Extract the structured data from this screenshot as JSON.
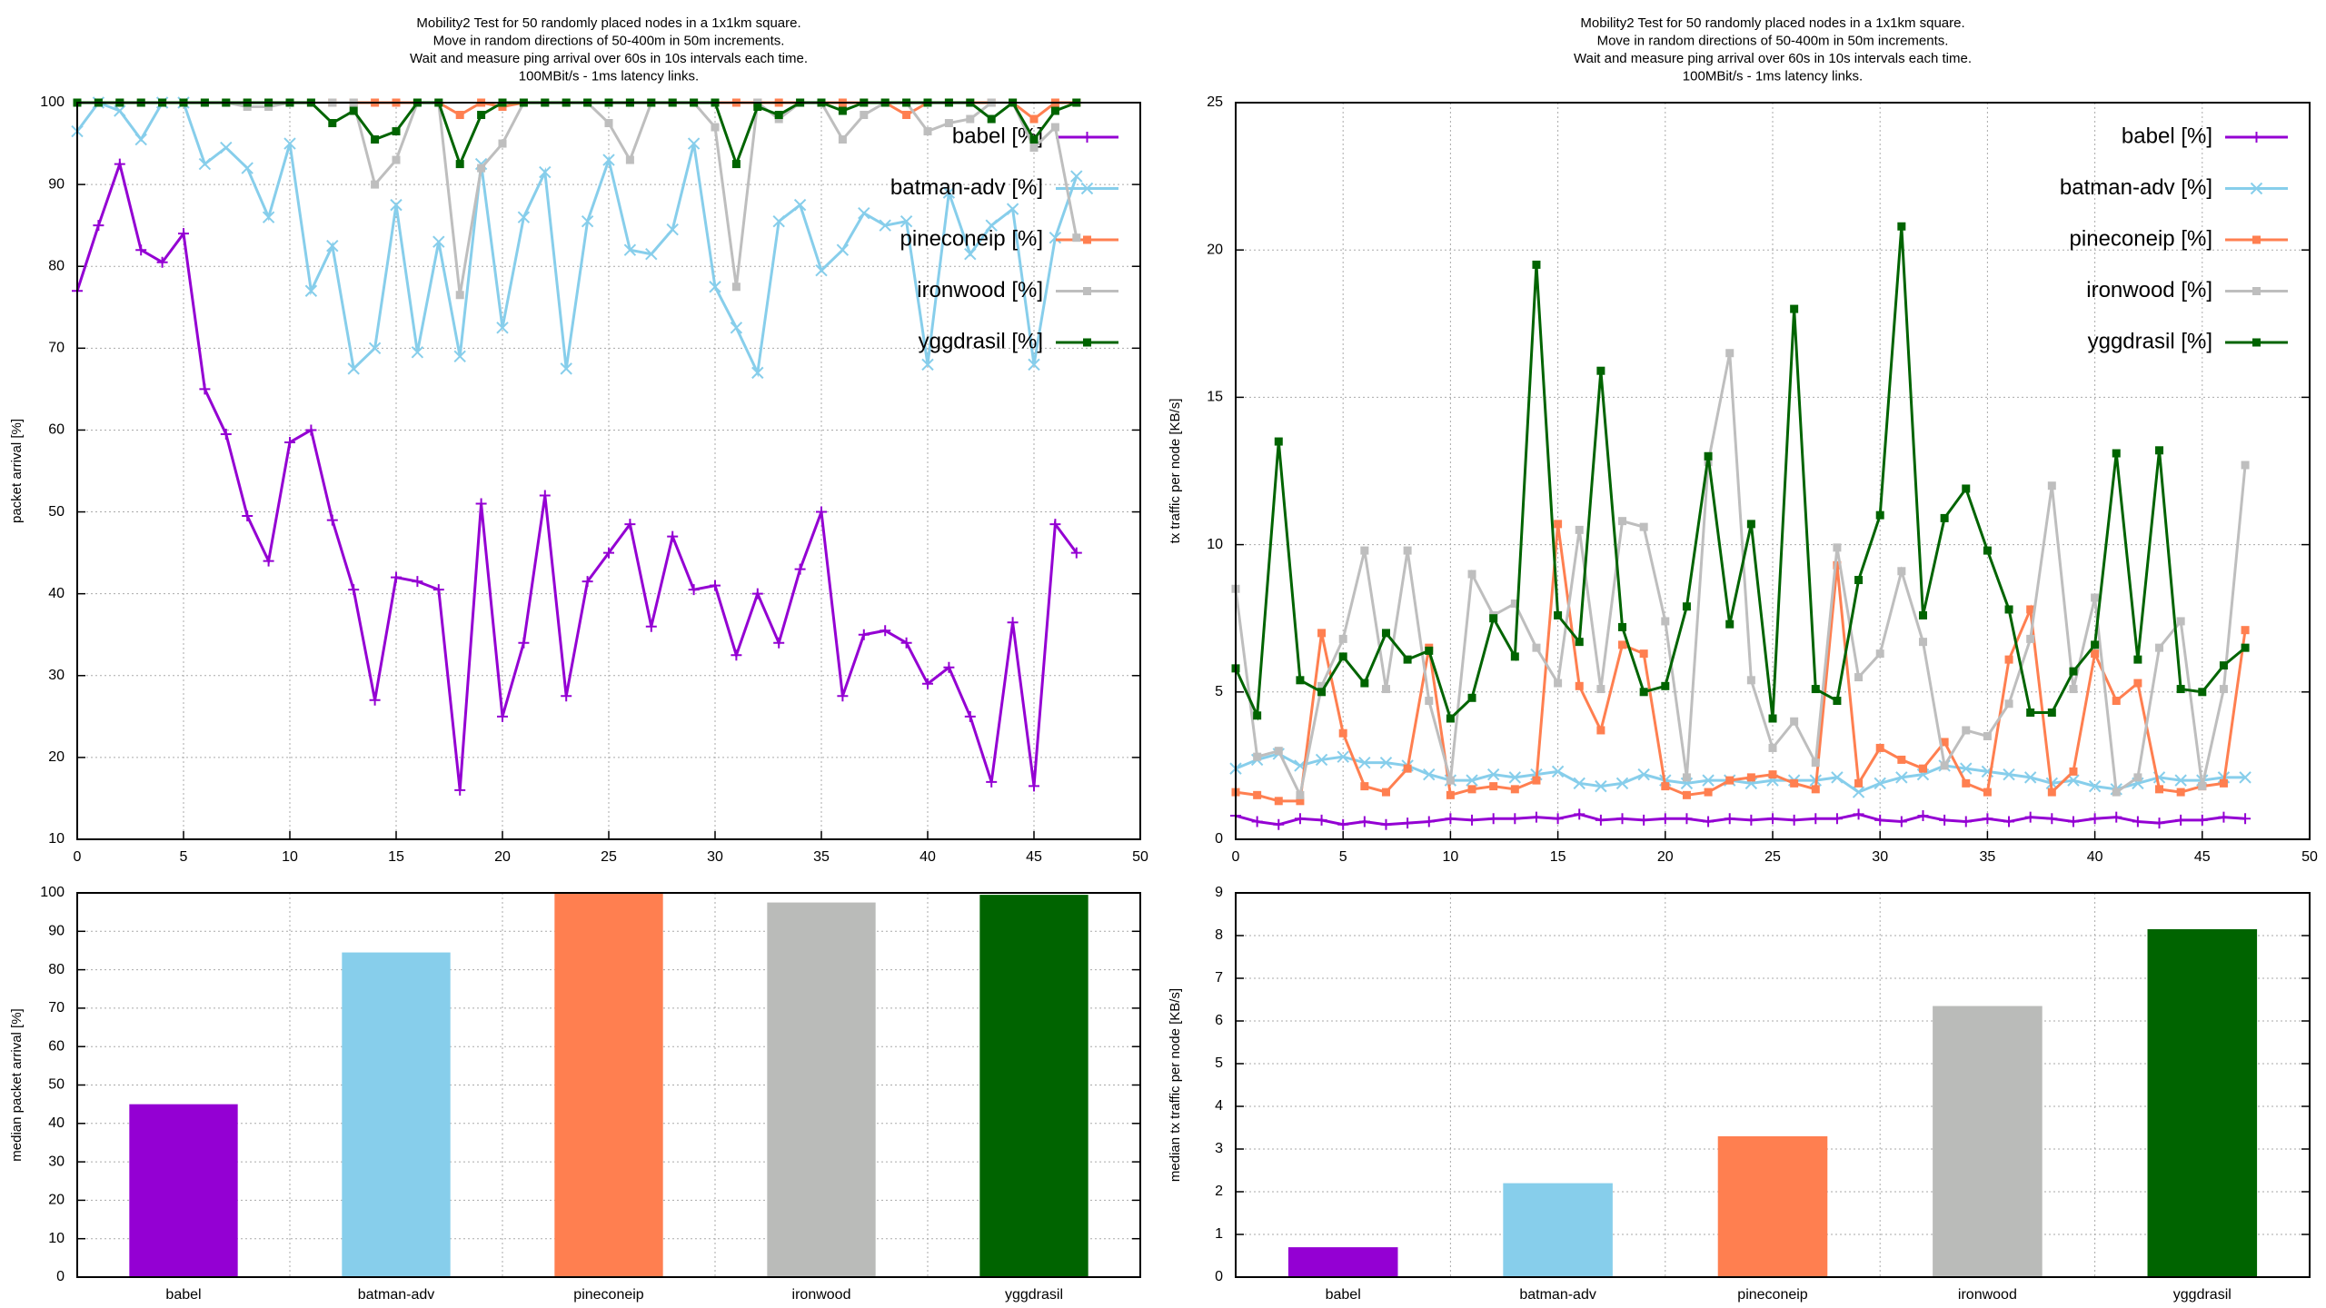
{
  "chart_data": [
    {
      "type": "line",
      "title": [
        "Mobility2 Test for 50 randomly placed nodes in a 1x1km square.",
        "Move in random directions of 50-400m in 50m increments.",
        "Wait and measure ping arrival over 60s in 10s intervals each time.",
        "100MBit/s - 1ms latency links."
      ],
      "ylabel": "packet arrival [%]",
      "xlim": [
        0,
        50
      ],
      "xticks": [
        0,
        5,
        10,
        15,
        20,
        25,
        30,
        35,
        40,
        45,
        50
      ],
      "ylim": [
        10,
        100
      ],
      "yticks": [
        10,
        20,
        30,
        40,
        50,
        60,
        70,
        80,
        90,
        100
      ],
      "grid": true,
      "legend": "top right",
      "x": [
        0,
        1,
        2,
        3,
        4,
        5,
        6,
        7,
        8,
        9,
        10,
        11,
        12,
        13,
        14,
        15,
        16,
        17,
        18,
        19,
        20,
        21,
        22,
        23,
        24,
        25,
        26,
        27,
        28,
        29,
        30,
        31,
        32,
        33,
        34,
        35,
        36,
        37,
        38,
        39,
        40,
        41,
        42,
        43,
        44,
        45,
        46,
        47
      ],
      "series": [
        {
          "name": "babel [%]",
          "color": "#9400d3",
          "marker": "plus",
          "values": [
            77,
            85,
            92.5,
            82,
            80.5,
            84,
            65,
            59.5,
            49.5,
            44,
            58.5,
            60,
            49,
            40.5,
            27,
            42,
            41.5,
            40.5,
            16,
            51,
            25,
            34,
            52,
            27.5,
            41.5,
            45,
            48.5,
            36,
            47,
            40.5,
            41,
            32.5,
            40,
            34,
            43,
            50,
            27.5,
            35,
            35.5,
            34,
            29,
            31,
            25,
            17,
            36.5,
            16.5,
            48.5,
            45
          ]
        },
        {
          "name": "batman-adv [%]",
          "color": "#87ceeb",
          "marker": "cross",
          "values": [
            96.5,
            100,
            99,
            95.5,
            100,
            100,
            92.5,
            94.5,
            92,
            86,
            95,
            77,
            82.5,
            67.5,
            70,
            87.5,
            69.5,
            83,
            69,
            92.5,
            72.5,
            86,
            91.5,
            67.5,
            85.5,
            93,
            82,
            81.5,
            84.5,
            95,
            77.5,
            72.5,
            67,
            85.5,
            87.5,
            79.5,
            82,
            86.5,
            85,
            85.5,
            68,
            89,
            81.5,
            85,
            87,
            68,
            83.5,
            91
          ]
        },
        {
          "name": "pineconeip [%]",
          "color": "#ff7f50",
          "marker": "square",
          "values": [
            100,
            100,
            100,
            100,
            100,
            100,
            100,
            100,
            100,
            100,
            100,
            100,
            100,
            100,
            100,
            100,
            100,
            100,
            98.5,
            100,
            99.5,
            100,
            100,
            100,
            100,
            100,
            100,
            100,
            100,
            100,
            100,
            100,
            100,
            100,
            100,
            100,
            100,
            100,
            100,
            98.5,
            100,
            100,
            100,
            100,
            100,
            98,
            100,
            100
          ]
        },
        {
          "name": "ironwood [%]",
          "color": "#bebebe",
          "marker": "square",
          "values": [
            100,
            100,
            100,
            100,
            100,
            100,
            100,
            100,
            99.5,
            99.5,
            100,
            100,
            100,
            100,
            90,
            93,
            100,
            100,
            76.5,
            92,
            95,
            100,
            100,
            100,
            100,
            97.5,
            93,
            100,
            100,
            100,
            97,
            77.5,
            100,
            98,
            100,
            100,
            95.5,
            98.5,
            100,
            100,
            96.5,
            97.5,
            98,
            100,
            100,
            94.5,
            97,
            83.5
          ]
        },
        {
          "name": "yggdrasil [%]",
          "color": "#006400",
          "marker": "square",
          "values": [
            100,
            100,
            100,
            100,
            100,
            100,
            100,
            100,
            100,
            100,
            100,
            100,
            97.5,
            99,
            95.5,
            96.5,
            100,
            100,
            92.5,
            98.5,
            100,
            100,
            100,
            100,
            100,
            100,
            100,
            100,
            100,
            100,
            100,
            92.5,
            99.5,
            98.5,
            100,
            100,
            99,
            100,
            100,
            100,
            100,
            100,
            100,
            98,
            100,
            95.5,
            99,
            100
          ]
        }
      ]
    },
    {
      "type": "line",
      "title": [
        "Mobility2 Test for 50 randomly placed nodes in a 1x1km square.",
        "Move in random directions of 50-400m in 50m increments.",
        "Wait and measure ping arrival over 60s in 10s intervals each time.",
        "100MBit/s - 1ms latency links."
      ],
      "ylabel": "tx traffic per node [KB/s]",
      "xlim": [
        0,
        50
      ],
      "xticks": [
        0,
        5,
        10,
        15,
        20,
        25,
        30,
        35,
        40,
        45,
        50
      ],
      "ylim": [
        0,
        25
      ],
      "yticks": [
        0,
        5,
        10,
        15,
        20,
        25
      ],
      "grid": true,
      "legend": "top right",
      "x": [
        0,
        1,
        2,
        3,
        4,
        5,
        6,
        7,
        8,
        9,
        10,
        11,
        12,
        13,
        14,
        15,
        16,
        17,
        18,
        19,
        20,
        21,
        22,
        23,
        24,
        25,
        26,
        27,
        28,
        29,
        30,
        31,
        32,
        33,
        34,
        35,
        36,
        37,
        38,
        39,
        40,
        41,
        42,
        43,
        44,
        45,
        46,
        47
      ],
      "series": [
        {
          "name": "babel [%]",
          "color": "#9400d3",
          "marker": "plus",
          "values": [
            0.8,
            0.6,
            0.5,
            0.7,
            0.65,
            0.5,
            0.6,
            0.5,
            0.55,
            0.6,
            0.7,
            0.65,
            0.7,
            0.7,
            0.75,
            0.7,
            0.85,
            0.65,
            0.7,
            0.65,
            0.7,
            0.7,
            0.6,
            0.7,
            0.65,
            0.7,
            0.65,
            0.7,
            0.7,
            0.85,
            0.65,
            0.6,
            0.8,
            0.65,
            0.6,
            0.7,
            0.6,
            0.75,
            0.7,
            0.6,
            0.7,
            0.75,
            0.6,
            0.55,
            0.65,
            0.65,
            0.75,
            0.7
          ]
        },
        {
          "name": "batman-adv [%]",
          "color": "#87ceeb",
          "marker": "cross",
          "values": [
            2.4,
            2.7,
            2.9,
            2.5,
            2.7,
            2.8,
            2.6,
            2.6,
            2.5,
            2.2,
            2,
            2,
            2.2,
            2.1,
            2.2,
            2.3,
            1.9,
            1.8,
            1.9,
            2.2,
            2,
            1.9,
            2,
            2,
            1.9,
            2,
            2,
            2,
            2.1,
            1.6,
            1.9,
            2.1,
            2.2,
            2.5,
            2.4,
            2.3,
            2.2,
            2.1,
            1.9,
            2,
            1.8,
            1.7,
            1.9,
            2.1,
            2,
            2,
            2.1,
            2.1
          ]
        },
        {
          "name": "pineconeip [%]",
          "color": "#ff7f50",
          "marker": "square",
          "values": [
            1.6,
            1.5,
            1.3,
            1.3,
            7,
            3.6,
            1.8,
            1.6,
            2.4,
            6.5,
            1.5,
            1.7,
            1.8,
            1.7,
            2,
            10.7,
            5.2,
            3.7,
            6.6,
            6.3,
            1.8,
            1.5,
            1.6,
            2,
            2.1,
            2.2,
            1.9,
            1.7,
            9.3,
            1.9,
            3.1,
            2.7,
            2.4,
            3.3,
            1.9,
            1.6,
            6.1,
            7.8,
            1.6,
            2.3,
            6.3,
            4.7,
            5.3,
            1.7,
            1.6,
            1.8,
            1.9,
            7.1
          ]
        },
        {
          "name": "ironwood [%]",
          "color": "#bebebe",
          "marker": "square",
          "values": [
            8.5,
            2.8,
            3,
            1.5,
            5.2,
            6.8,
            9.8,
            5.1,
            9.8,
            4.7,
            2,
            9,
            7.6,
            8,
            6.5,
            5.3,
            10.5,
            5.1,
            10.8,
            10.6,
            7.4,
            2.1,
            12.8,
            16.5,
            5.4,
            3.1,
            4,
            2.6,
            9.9,
            5.5,
            6.3,
            9.1,
            6.7,
            2.5,
            3.7,
            3.5,
            4.6,
            6.8,
            12,
            5.1,
            8.2,
            1.6,
            2.1,
            6.5,
            7.4,
            1.8,
            5.1,
            12.7
          ]
        },
        {
          "name": "yggdrasil [%]",
          "color": "#006400",
          "marker": "square",
          "values": [
            5.8,
            4.2,
            13.5,
            5.4,
            5,
            6.2,
            5.3,
            7,
            6.1,
            6.4,
            4.1,
            4.8,
            7.5,
            6.2,
            19.5,
            7.6,
            6.7,
            15.9,
            7.2,
            5,
            5.2,
            7.9,
            13,
            7.3,
            10.7,
            4.1,
            18,
            5.1,
            4.7,
            8.8,
            11,
            20.8,
            7.6,
            10.9,
            11.9,
            9.8,
            7.8,
            4.3,
            4.3,
            5.7,
            6.6,
            13.1,
            6.1,
            13.2,
            5.1,
            5,
            5.9,
            6.5
          ]
        }
      ]
    },
    {
      "type": "bar",
      "ylabel": "median packet arrival [%]",
      "categories": [
        "babel",
        "batman-adv",
        "pineconeip",
        "ironwood",
        "yggdrasil"
      ],
      "values": [
        45,
        84.5,
        100,
        97.5,
        99.5
      ],
      "colors": [
        "#9400d3",
        "#87ceeb",
        "#ff7f50",
        "#babbb9",
        "#006400"
      ],
      "ylim": [
        0,
        100
      ],
      "yticks": [
        0,
        10,
        20,
        30,
        40,
        50,
        60,
        70,
        80,
        90,
        100
      ],
      "grid": true
    },
    {
      "type": "bar",
      "ylabel": "median tx traffic per node [KB/s]",
      "categories": [
        "babel",
        "batman-adv",
        "pineconeip",
        "ironwood",
        "yggdrasil"
      ],
      "values": [
        0.7,
        2.2,
        3.3,
        6.35,
        8.15
      ],
      "colors": [
        "#9400d3",
        "#87ceeb",
        "#ff7f50",
        "#babbb9",
        "#006400"
      ],
      "ylim": [
        0,
        9
      ],
      "yticks": [
        0,
        1,
        2,
        3,
        4,
        5,
        6,
        7,
        8,
        9
      ],
      "grid": true
    }
  ]
}
